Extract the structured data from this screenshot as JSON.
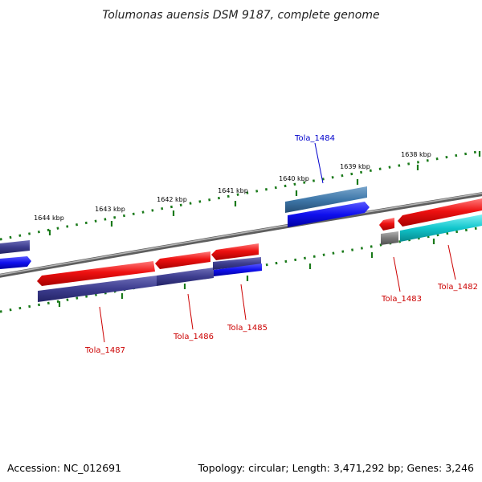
{
  "title": "Tolumonas auensis DSM 9187, complete genome",
  "footer": {
    "accession": "Accession: NC_012691",
    "summary": "Topology: circular; Length: 3,471,292 bp; Genes: 3,246"
  },
  "scale": {
    "ticks": [
      "1644 kbp",
      "1643 kbp",
      "1642 kbp",
      "1641 kbp",
      "1640 kbp",
      "1639 kbp",
      "1638 kbp"
    ]
  },
  "genes": [
    {
      "id": "Tola_1484",
      "label": "Tola_1484",
      "label_color": "#0000cc"
    },
    {
      "id": "Tola_1487",
      "label": "Tola_1487",
      "label_color": "#cc0000"
    },
    {
      "id": "Tola_1486",
      "label": "Tola_1486",
      "label_color": "#cc0000"
    },
    {
      "id": "Tola_1485",
      "label": "Tola_1485",
      "label_color": "#cc0000"
    },
    {
      "id": "Tola_1483",
      "label": "Tola_1483",
      "label_color": "#cc0000"
    },
    {
      "id": "Tola_1482",
      "label": "Tola_1482",
      "label_color": "#cc0000"
    }
  ],
  "colors": {
    "red": "#ee1111",
    "navy": "#3d3d8f",
    "blue": "#1010ee",
    "steel": "#3f78aa",
    "cyan": "#11c6cc",
    "grey": "#7a7a7a",
    "backbone": "#8a8a8a",
    "tick": "#1a7a1a"
  }
}
